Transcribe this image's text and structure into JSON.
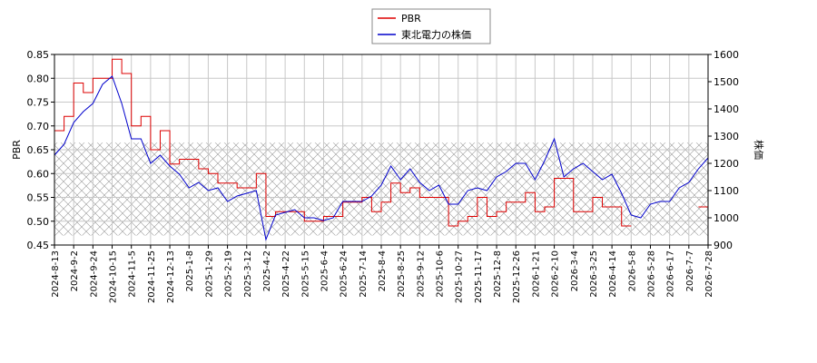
{
  "chart_data": {
    "type": "line",
    "categories": [
      "2024-8-13",
      null,
      "2024-9-2",
      null,
      "2024-9-24",
      null,
      "2024-10-15",
      null,
      "2024-11-5",
      null,
      "2024-11-25",
      null,
      "2024-12-13",
      null,
      "2025-1-8",
      null,
      "2025-1-29",
      null,
      "2025-2-19",
      null,
      "2025-3-12",
      null,
      "2025-4-2",
      null,
      "2025-4-22",
      null,
      "2025-5-15",
      null,
      "2025-6-4",
      null,
      "2025-6-24",
      null,
      "2025-7-14",
      null,
      "2025-8-4",
      null,
      "2025-8-25",
      null,
      "2025-9-12",
      null,
      "2025-10-6",
      null,
      "2025-10-27",
      null,
      "2025-11-17",
      null,
      "2025-12-8",
      null,
      "2025-12-26",
      null,
      "2026-1-21",
      null,
      "2026-2-10",
      null,
      "2026-3-4",
      null,
      "2026-3-25",
      null,
      "2026-4-14",
      null,
      "2026-5-8",
      null,
      "2026-5-28",
      null,
      "2026-6-17",
      null,
      "2026-7-7",
      null,
      "2026-7-28"
    ],
    "series": [
      {
        "name": "PBR",
        "color": "#dd0000",
        "axis": "y",
        "step": true,
        "values": [
          0.69,
          0.72,
          0.79,
          0.77,
          0.8,
          0.8,
          0.84,
          0.81,
          0.7,
          0.72,
          0.65,
          0.69,
          0.62,
          0.63,
          0.63,
          0.61,
          0.6,
          0.58,
          0.58,
          0.57,
          0.57,
          0.6,
          0.51,
          0.52,
          0.52,
          0.52,
          0.5,
          0.5,
          0.51,
          0.51,
          0.54,
          0.54,
          0.55,
          0.52,
          0.54,
          0.58,
          0.56,
          0.57,
          0.55,
          0.55,
          0.55,
          0.49,
          0.5,
          0.51,
          0.55,
          0.51,
          0.52,
          0.54,
          0.54,
          0.56,
          0.52,
          0.53,
          0.59,
          0.59,
          0.52,
          0.52,
          0.55,
          0.53,
          0.53,
          0.49,
          0.49,
          null,
          null,
          null,
          null,
          null,
          null,
          0.53,
          0.53
        ]
      },
      {
        "name": "東北電力の株価",
        "color": "#0000cc",
        "axis": "y2",
        "values": [
          1230,
          1270,
          1350,
          1390,
          1420,
          1490,
          1520,
          1420,
          1290,
          1290,
          1200,
          1230,
          1190,
          1160,
          1110,
          1130,
          1100,
          1110,
          1060,
          1080,
          1090,
          1100,
          920,
          1010,
          1020,
          1030,
          1000,
          1000,
          990,
          1000,
          1060,
          1060,
          1060,
          1080,
          1120,
          1190,
          1140,
          1180,
          1130,
          1100,
          1120,
          1050,
          1050,
          1100,
          1110,
          1100,
          1150,
          1170,
          1200,
          1200,
          1140,
          1210,
          1290,
          1150,
          1180,
          1200,
          1170,
          1140,
          1160,
          1090,
          1010,
          1000,
          1050,
          1060,
          1060,
          1110,
          1130,
          1180,
          1220
        ]
      }
    ],
    "ylabel": "PBR",
    "y2label": "株価",
    "ylim": [
      0.45,
      0.85
    ],
    "yticks": [
      0.45,
      {
        "value": 0.5,
        "label": "0.50"
      },
      0.55,
      {
        "value": 0.6,
        "label": "0.60"
      },
      0.65,
      {
        "value": 0.7,
        "label": "0.70"
      },
      0.75,
      {
        "value": 0.8,
        "label": "0.80"
      },
      0.85
    ],
    "y2lim": [
      900,
      1600
    ],
    "y2ticks": [
      900,
      1000,
      1100,
      1200,
      1300,
      1400,
      1500,
      1600
    ],
    "band_ylim": [
      0.47,
      0.665
    ],
    "grid": true,
    "legend": "top"
  }
}
